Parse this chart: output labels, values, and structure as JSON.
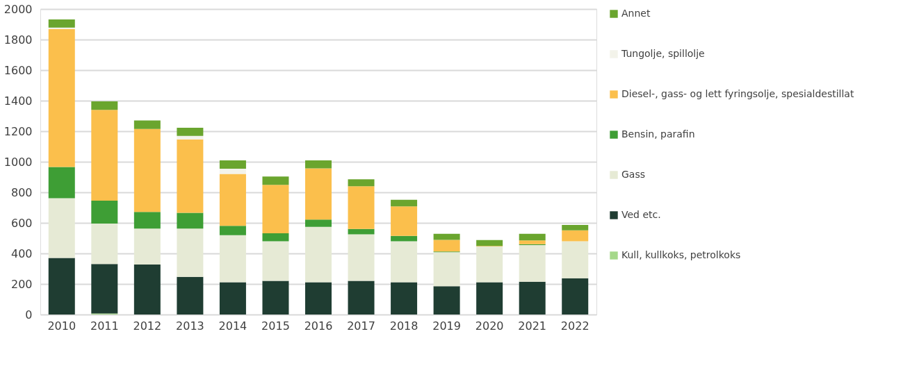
{
  "chart_data": {
    "type": "bar",
    "stacked": true,
    "categories": [
      "2010",
      "2011",
      "2012",
      "2013",
      "2014",
      "2015",
      "2016",
      "2017",
      "2018",
      "2019",
      "2020",
      "2021",
      "2022"
    ],
    "series": [
      {
        "name": "Kull, kullkoks, petrolkoks",
        "color": "#a5d88a",
        "values": [
          0,
          7,
          0,
          0,
          0,
          0,
          0,
          0,
          0,
          0,
          0,
          0,
          0
        ]
      },
      {
        "name": "Ved etc.",
        "color": "#1f3d32",
        "values": [
          371,
          324,
          327,
          247,
          211,
          220,
          211,
          220,
          211,
          185,
          211,
          215,
          238
        ]
      },
      {
        "name": "Gass",
        "color": "#e6ead5",
        "values": [
          390,
          265,
          236,
          316,
          308,
          260,
          363,
          305,
          269,
          223,
          234,
          240,
          242
        ]
      },
      {
        "name": "Bensin, parafin",
        "color": "#3e9e35",
        "values": [
          205,
          150,
          109,
          103,
          62,
          52,
          48,
          35,
          35,
          4,
          0,
          5,
          0
        ]
      },
      {
        "name": "Diesel-, gass- og lett fyringsolje, spesialdestillat",
        "color": "#fbbf4c",
        "values": [
          903,
          594,
          543,
          481,
          340,
          317,
          335,
          280,
          193,
          77,
          4,
          25,
          71
        ]
      },
      {
        "name": "Tungolje, spillolje",
        "color": "#f3f3ea",
        "values": [
          9,
          null,
          null,
          22,
          34,
          0,
          0,
          0,
          0,
          0,
          0,
          0,
          0
        ]
      },
      {
        "name": "Annet",
        "color": "#6aa52e",
        "values": [
          54,
          56,
          56,
          54,
          54,
          54,
          52,
          45,
          43,
          39,
          39,
          43,
          35
        ]
      }
    ],
    "ylim": [
      0,
      2000
    ],
    "yticks": [
      0,
      200,
      400,
      600,
      800,
      1000,
      1200,
      1400,
      1600,
      1800,
      2000
    ],
    "grid": "y",
    "legend": "right"
  }
}
